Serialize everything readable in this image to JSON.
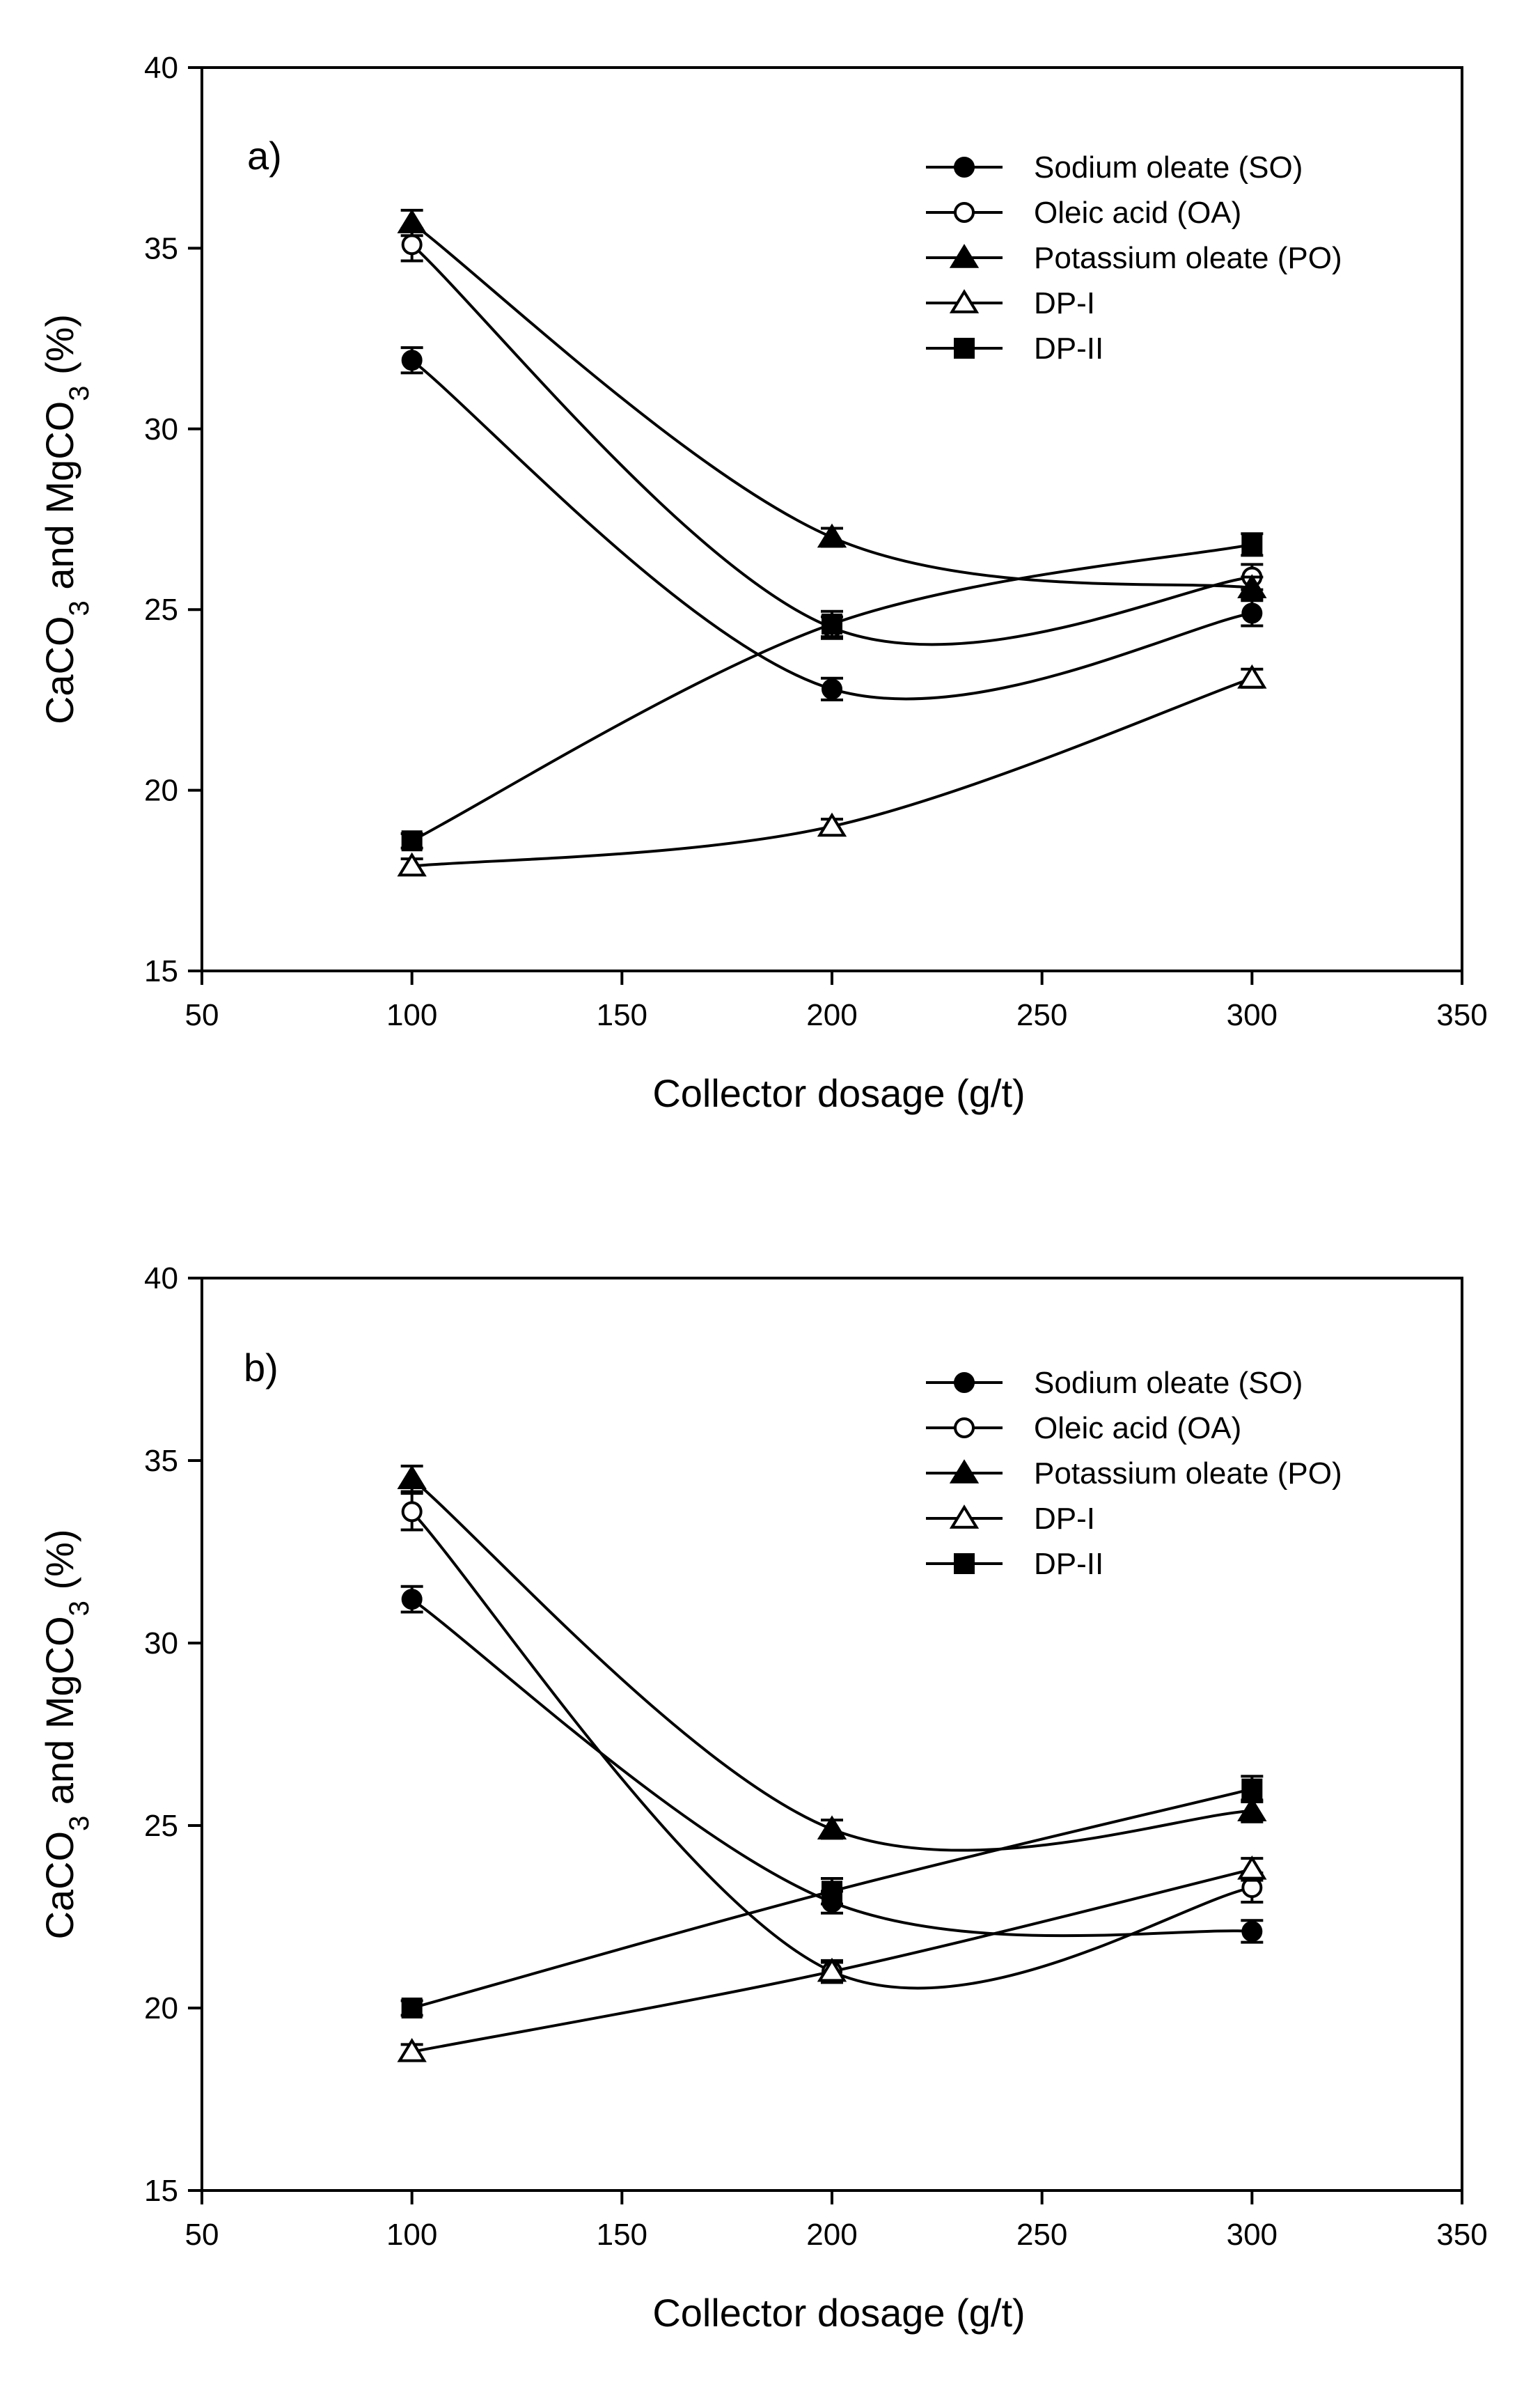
{
  "chart_data": [
    {
      "type": "line",
      "panel_label": "a)",
      "xlabel": "Collector dosage (g/t)",
      "ylabel_main": "CaCO",
      "ylabel_sub1": "3",
      "ylabel_mid": " and MgCO",
      "ylabel_sub2": "3",
      "ylabel_tail": " (%)",
      "xlim": [
        50,
        350
      ],
      "ylim": [
        15,
        40
      ],
      "xticks": [
        50,
        100,
        150,
        200,
        250,
        300,
        350
      ],
      "yticks": [
        15,
        20,
        25,
        30,
        35,
        40
      ],
      "xtick_labels": [
        "50",
        "100",
        "150",
        "200",
        "250",
        "300",
        "350"
      ],
      "ytick_labels": [
        "15",
        "20",
        "25",
        "30",
        "35",
        "40"
      ],
      "grid": false,
      "legend_position": "top-right",
      "series": [
        {
          "name": "Sodium oleate (SO)",
          "marker": "circle",
          "filled": true,
          "x": [
            100,
            200,
            300
          ],
          "y": [
            31.9,
            22.8,
            24.9
          ],
          "err": [
            0.35,
            0.3,
            0.35
          ]
        },
        {
          "name": "Oleic acid (OA)",
          "marker": "circle",
          "filled": false,
          "x": [
            100,
            200,
            300
          ],
          "y": [
            35.1,
            24.5,
            25.9
          ],
          "err": [
            0.45,
            0.3,
            0.35
          ]
        },
        {
          "name": "Potassium oleate (PO)",
          "marker": "triangle",
          "filled": true,
          "x": [
            100,
            200,
            300
          ],
          "y": [
            35.7,
            27.0,
            25.6
          ],
          "err": [
            0.35,
            0.25,
            0.3
          ]
        },
        {
          "name": "DP-I",
          "marker": "triangle",
          "filled": false,
          "x": [
            100,
            200,
            300
          ],
          "y": [
            17.9,
            19.0,
            23.1
          ],
          "err": [
            0.2,
            0.2,
            0.25
          ]
        },
        {
          "name": "DP-II",
          "marker": "square",
          "filled": true,
          "x": [
            100,
            200,
            300
          ],
          "y": [
            18.6,
            24.6,
            26.8
          ],
          "err": [
            0.2,
            0.35,
            0.3
          ]
        }
      ]
    },
    {
      "type": "line",
      "panel_label": "b)",
      "xlabel": "Collector dosage (g/t)",
      "ylabel_main": "CaCO",
      "ylabel_sub1": "3",
      "ylabel_mid": " and MgCO",
      "ylabel_sub2": "3",
      "ylabel_tail": " (%)",
      "xlim": [
        50,
        350
      ],
      "ylim": [
        15,
        40
      ],
      "xticks": [
        50,
        100,
        150,
        200,
        250,
        300,
        350
      ],
      "yticks": [
        15,
        20,
        25,
        30,
        35,
        40
      ],
      "xtick_labels": [
        "50",
        "100",
        "150",
        "200",
        "250",
        "300",
        "350"
      ],
      "ytick_labels": [
        "15",
        "20",
        "25",
        "30",
        "35",
        "40"
      ],
      "grid": false,
      "legend_position": "top-right",
      "series": [
        {
          "name": "Sodium oleate (SO)",
          "marker": "circle",
          "filled": true,
          "x": [
            100,
            200,
            300
          ],
          "y": [
            31.2,
            22.9,
            22.1
          ],
          "err": [
            0.35,
            0.3,
            0.3
          ]
        },
        {
          "name": "Oleic acid (OA)",
          "marker": "circle",
          "filled": false,
          "x": [
            100,
            200,
            300
          ],
          "y": [
            33.6,
            21.0,
            23.3
          ],
          "err": [
            0.5,
            0.3,
            0.4
          ]
        },
        {
          "name": "Potassium oleate (PO)",
          "marker": "triangle",
          "filled": true,
          "x": [
            100,
            200,
            300
          ],
          "y": [
            34.5,
            24.9,
            25.4
          ],
          "err": [
            0.35,
            0.25,
            0.3
          ]
        },
        {
          "name": "DP-I",
          "marker": "triangle",
          "filled": false,
          "x": [
            100,
            200,
            300
          ],
          "y": [
            18.8,
            21.0,
            23.8
          ],
          "err": [
            0.2,
            0.25,
            0.3
          ]
        },
        {
          "name": "DP-II",
          "marker": "square",
          "filled": true,
          "x": [
            100,
            200,
            300
          ],
          "y": [
            20.0,
            23.2,
            26.0
          ],
          "err": [
            0.2,
            0.35,
            0.35
          ]
        }
      ]
    }
  ]
}
